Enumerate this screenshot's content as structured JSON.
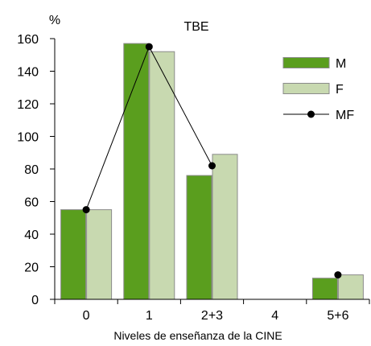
{
  "chart_data": {
    "type": "bar",
    "title": "TBE",
    "ylabel": "%",
    "xlabel": "Niveles de enseñanza de la CINE",
    "categories": [
      "0",
      "1",
      "2+3",
      "4",
      "5+6"
    ],
    "ylim": [
      0,
      160
    ],
    "yticks": [
      0,
      20,
      40,
      60,
      80,
      100,
      120,
      140,
      160
    ],
    "grid": false,
    "legend_position": "right",
    "series": [
      {
        "name": "M",
        "kind": "bar",
        "color": "#5a9e1e",
        "values": [
          55,
          157,
          76,
          null,
          13
        ]
      },
      {
        "name": "F",
        "kind": "bar",
        "color": "#c8d9b0",
        "values": [
          55,
          152,
          89,
          null,
          15
        ]
      },
      {
        "name": "MF",
        "kind": "line",
        "color": "#000000",
        "values": [
          55,
          155,
          82,
          null,
          15
        ]
      }
    ]
  }
}
